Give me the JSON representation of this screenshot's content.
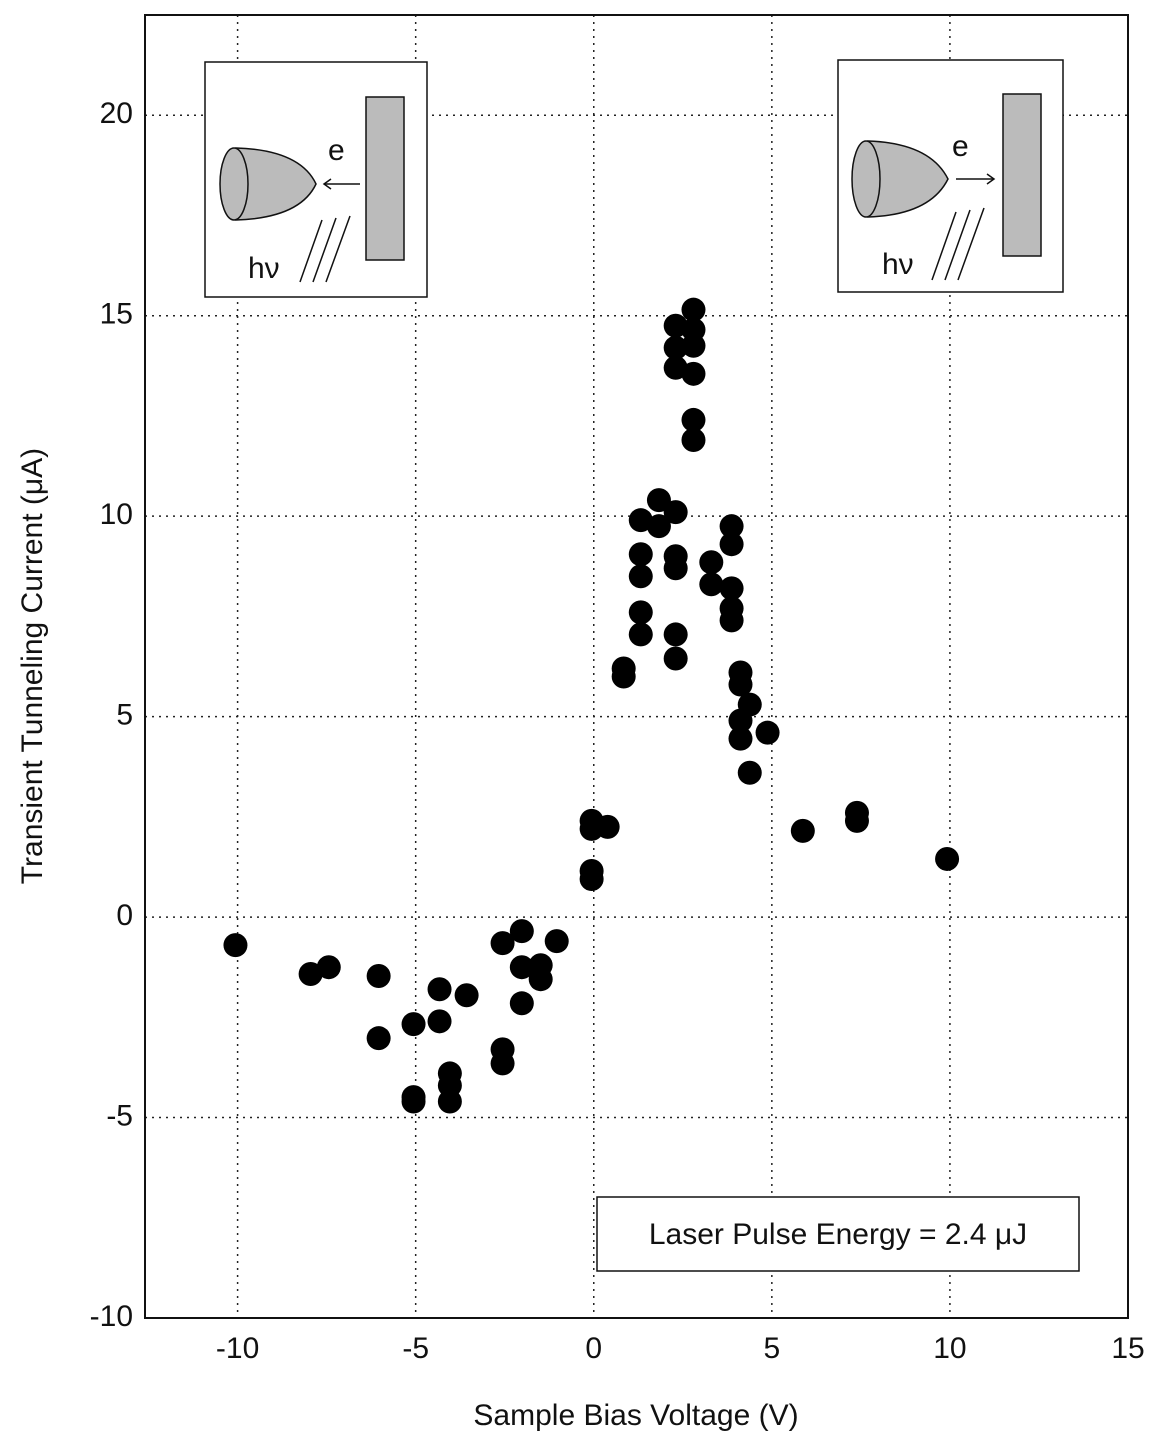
{
  "chart_data": {
    "type": "scatter",
    "x_label": "Sample Bias Voltage (V)",
    "y_label": "Transient Tunneling Current (μA)",
    "annotations": [
      "Laser Pulse Energy = 2.4 μJ"
    ],
    "insets": [
      {
        "electron": "e",
        "photon": "hν"
      },
      {
        "electron": "e",
        "photon": "hν"
      }
    ],
    "xlim": [
      -12.6,
      15
    ],
    "ylim": [
      -10,
      22.5
    ],
    "xticks": [
      -10,
      -5,
      0,
      5,
      10,
      15
    ],
    "yticks": [
      -10,
      -5,
      0,
      5,
      10,
      15,
      20
    ],
    "grid": true,
    "color": "#000000",
    "x": [
      -10.06,
      -7.95,
      -7.44,
      -6.04,
      -6.04,
      -5.06,
      -5.06,
      -5.06,
      -4.33,
      -4.33,
      -4.04,
      -4.04,
      -4.04,
      -3.57,
      -2.56,
      -2.56,
      -2.56,
      -2.02,
      -2.02,
      -2.02,
      -1.49,
      -1.49,
      -1.04,
      -0.06,
      -0.06,
      -0.06,
      -0.06,
      0.39,
      0.84,
      0.84,
      1.32,
      1.32,
      1.32,
      1.32,
      1.32,
      1.83,
      1.83,
      2.3,
      2.3,
      2.3,
      2.3,
      2.3,
      2.3,
      2.3,
      2.3,
      2.8,
      2.8,
      2.8,
      2.8,
      2.8,
      2.8,
      3.3,
      3.3,
      3.87,
      3.87,
      3.87,
      3.87,
      3.87,
      4.12,
      4.12,
      4.12,
      4.12,
      4.38,
      4.38,
      4.88,
      5.87,
      7.39,
      7.39,
      9.92
    ],
    "y": [
      -0.7,
      -1.42,
      -1.25,
      -1.47,
      -3.02,
      -2.67,
      -4.49,
      -4.6,
      -1.8,
      -2.6,
      -3.9,
      -4.2,
      -4.6,
      -1.95,
      -0.65,
      -3.3,
      -3.65,
      -0.35,
      -1.25,
      -2.15,
      -1.2,
      -1.55,
      -0.6,
      2.2,
      2.4,
      1.15,
      0.95,
      2.25,
      6.2,
      6.0,
      9.9,
      9.05,
      8.5,
      7.6,
      7.05,
      10.4,
      9.75,
      10.1,
      14.75,
      14.2,
      13.7,
      9.0,
      8.7,
      7.05,
      6.45,
      15.15,
      14.65,
      14.25,
      13.55,
      12.4,
      11.9,
      8.85,
      8.3,
      9.75,
      9.3,
      8.2,
      7.7,
      7.4,
      6.1,
      5.8,
      4.9,
      4.45,
      5.3,
      3.6,
      4.6,
      2.15,
      2.6,
      2.4,
      1.45
    ]
  }
}
